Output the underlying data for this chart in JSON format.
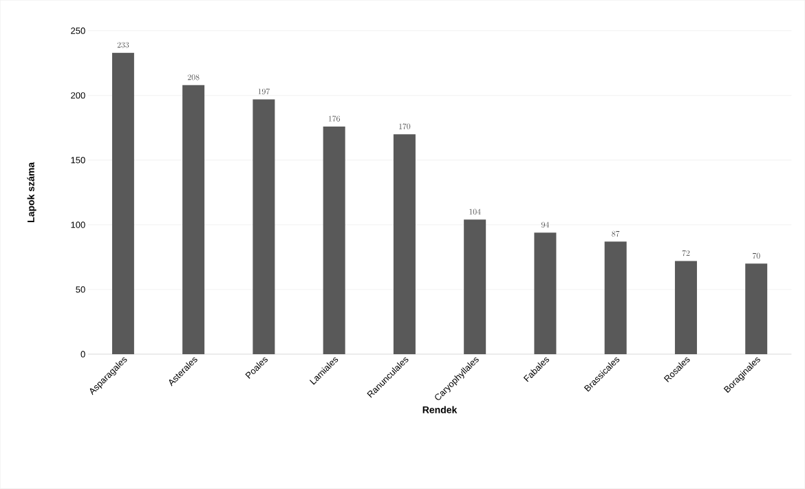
{
  "chart_data": {
    "type": "bar",
    "xlabel": "Rendek",
    "ylabel": "Lapok száma",
    "categories": [
      "Asparagales",
      "Asterales",
      "Poales",
      "Lamiales",
      "Ranunculales",
      "Caryophyllales",
      "Fabales",
      "Brassicales",
      "Rosales",
      "Boraginales"
    ],
    "values": [
      233,
      208,
      197,
      176,
      170,
      104,
      94,
      87,
      72,
      70
    ],
    "color": "#595959",
    "ylim": [
      0,
      250
    ],
    "yticks": [
      0,
      50,
      100,
      150,
      200,
      250
    ],
    "grid": "y",
    "data_labels": true
  }
}
